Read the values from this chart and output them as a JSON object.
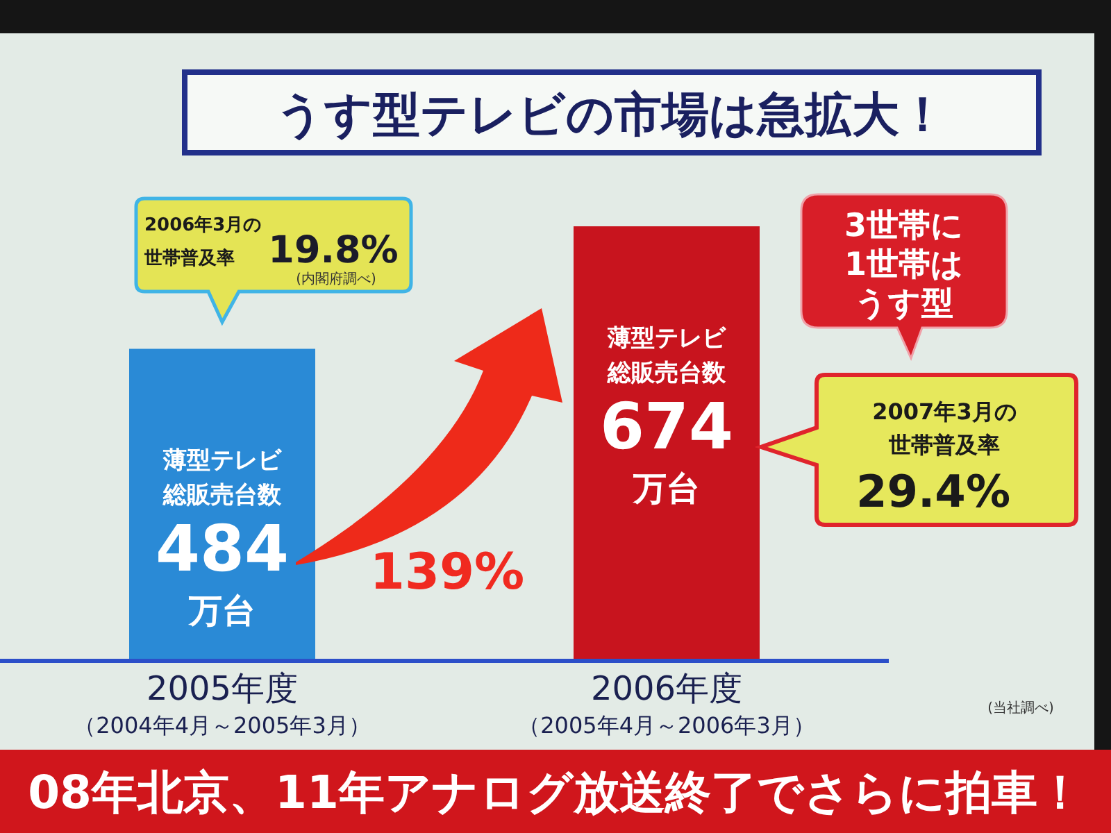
{
  "chart_data": {
    "type": "bar",
    "title": "うす型テレビの市場は急拡大！",
    "categories": [
      "2005年度",
      "2006年度"
    ],
    "values": [
      484,
      674
    ],
    "colors": [
      "#2a8ad6",
      "#c8141e"
    ],
    "data_labels": true,
    "annotations": [
      "2006年3月の",
      "世帯普及率",
      "19.8%",
      "(内閣府調べ)",
      "3世帯に",
      "1世帯は",
      "うす型",
      "2007年3月の",
      "世帯普及率",
      "29.4%",
      "139%",
      "(当社調べ)",
      "08年北京、11年アナログ放送終了でさらに拍車！",
      "（2004年4月～2005年3月）",
      "（2005年4月～2006年3月）",
      "薄型テレビ",
      "総販売台数",
      "万台",
      "薄型テレビ",
      "総販売台数",
      "万台"
    ]
  }
}
